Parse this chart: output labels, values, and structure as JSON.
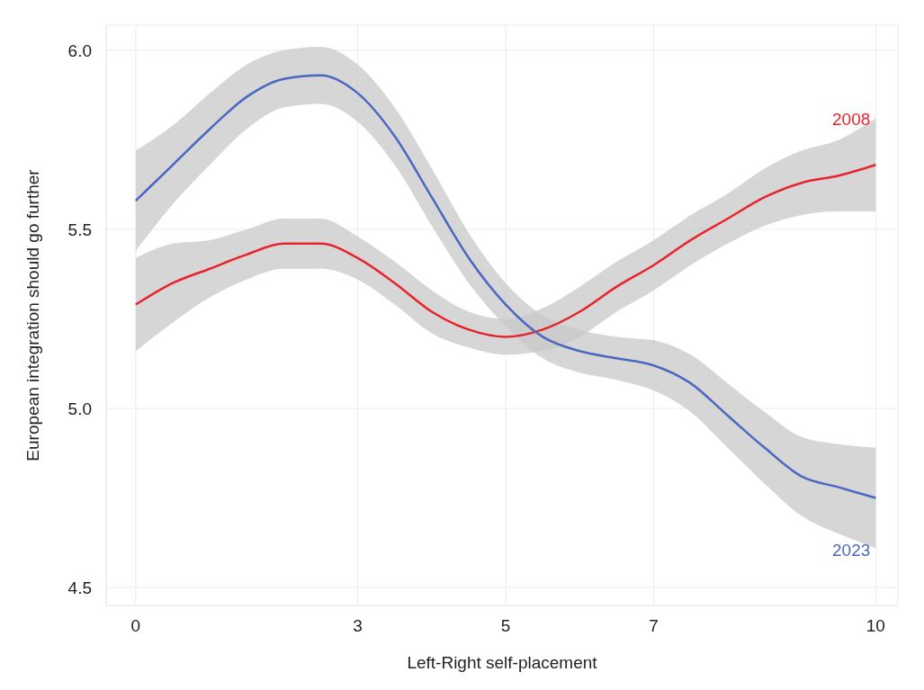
{
  "chart_data": {
    "type": "line",
    "xlabel": "Left-Right self-placement",
    "ylabel": "European integration should go further",
    "x": [
      0,
      0.5,
      1,
      1.5,
      2,
      2.5,
      3,
      3.5,
      4,
      4.5,
      5,
      5.5,
      6,
      6.5,
      7,
      7.5,
      8,
      8.5,
      9,
      9.5,
      10
    ],
    "series": [
      {
        "name": "2008",
        "color": "#e8232b",
        "values": [
          5.29,
          5.35,
          5.39,
          5.43,
          5.46,
          5.46,
          5.42,
          5.35,
          5.27,
          5.22,
          5.2,
          5.22,
          5.27,
          5.34,
          5.4,
          5.47,
          5.53,
          5.59,
          5.63,
          5.65,
          5.68
        ],
        "lower": [
          5.16,
          5.24,
          5.31,
          5.36,
          5.39,
          5.39,
          5.36,
          5.29,
          5.21,
          5.17,
          5.15,
          5.16,
          5.2,
          5.27,
          5.33,
          5.4,
          5.46,
          5.51,
          5.54,
          5.55,
          5.55
        ],
        "upper": [
          5.42,
          5.46,
          5.47,
          5.5,
          5.53,
          5.53,
          5.48,
          5.41,
          5.33,
          5.27,
          5.25,
          5.28,
          5.34,
          5.41,
          5.47,
          5.54,
          5.6,
          5.67,
          5.72,
          5.75,
          5.81
        ]
      },
      {
        "name": "2023",
        "color": "#4a68c0",
        "values": [
          5.58,
          5.68,
          5.78,
          5.87,
          5.92,
          5.93,
          5.88,
          5.76,
          5.59,
          5.42,
          5.29,
          5.2,
          5.16,
          5.14,
          5.12,
          5.07,
          4.98,
          4.89,
          4.81,
          4.78,
          4.75
        ],
        "lower": [
          5.44,
          5.57,
          5.68,
          5.78,
          5.84,
          5.85,
          5.8,
          5.68,
          5.51,
          5.35,
          5.23,
          5.14,
          5.1,
          5.08,
          5.05,
          4.99,
          4.89,
          4.79,
          4.7,
          4.65,
          4.61
        ],
        "upper": [
          5.72,
          5.79,
          5.88,
          5.96,
          6.0,
          6.01,
          5.96,
          5.84,
          5.67,
          5.49,
          5.35,
          5.26,
          5.22,
          5.2,
          5.19,
          5.15,
          5.07,
          4.99,
          4.92,
          4.9,
          4.89
        ]
      }
    ],
    "xlim": [
      -0.4,
      10.3
    ],
    "xticks": [
      0,
      3,
      5,
      7,
      10
    ],
    "ylim": [
      4.45,
      6.07
    ],
    "yticks": [
      4.5,
      {
        "value": 5,
        "label": "5.0"
      },
      5.5,
      {
        "value": 6,
        "label": "6.0"
      }
    ],
    "grid": true
  }
}
